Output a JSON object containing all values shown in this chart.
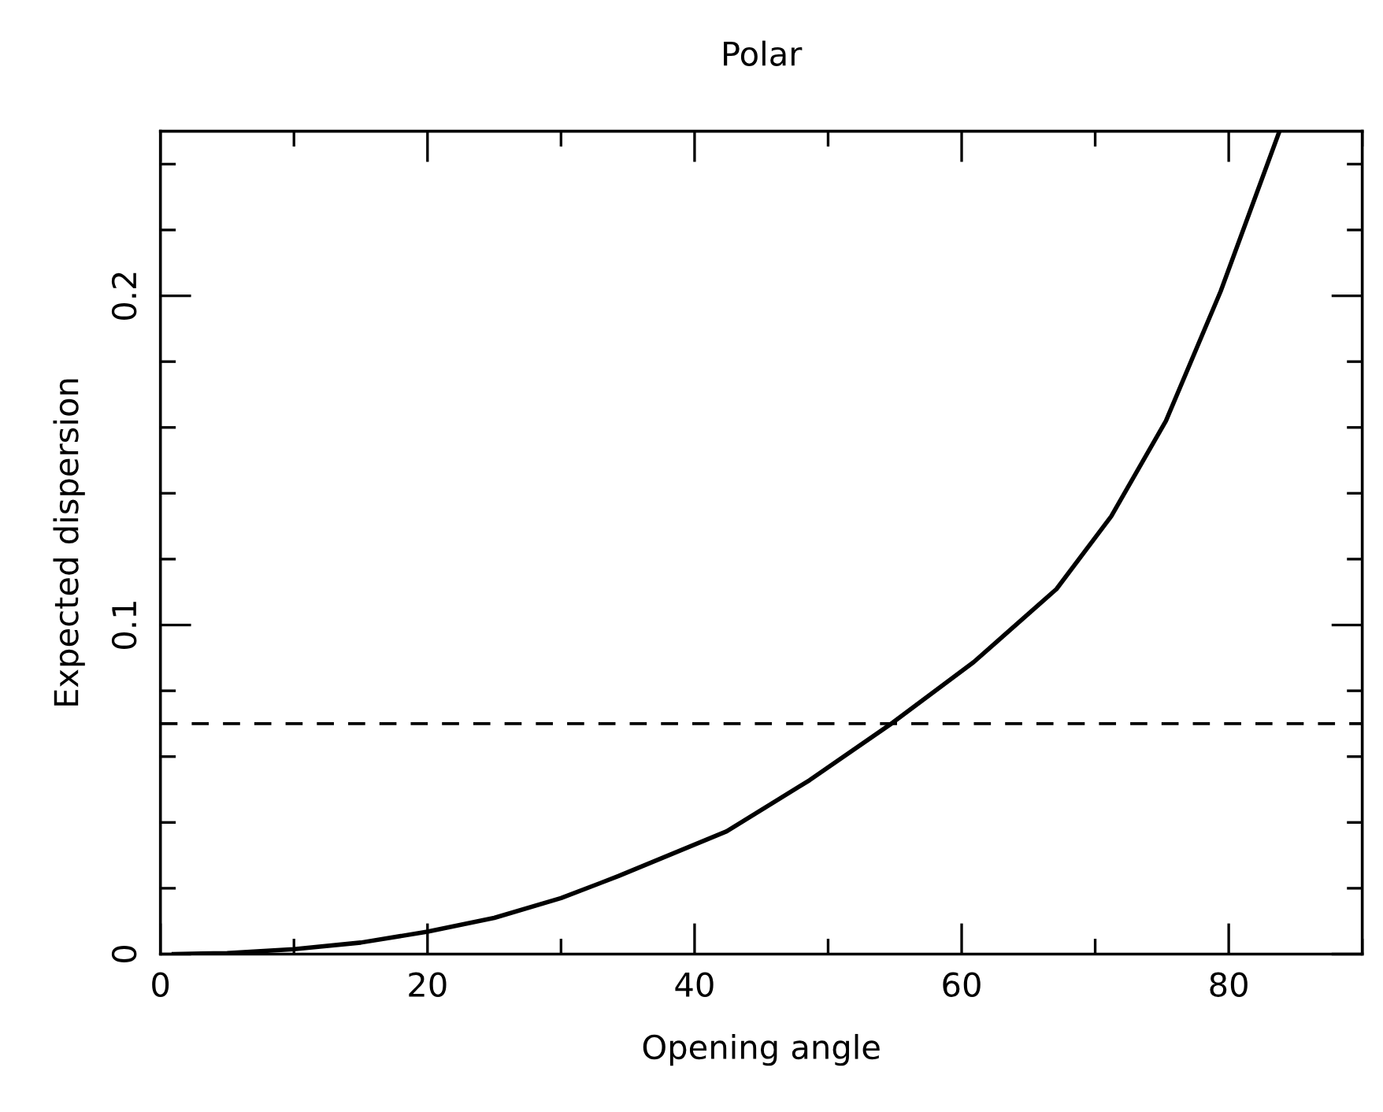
{
  "chart_data": {
    "type": "line",
    "title": "Polar",
    "xlabel": "Opening angle",
    "ylabel": "Expected dispersion",
    "xlim": [
      0,
      90
    ],
    "ylim": [
      0,
      0.25
    ],
    "xticks": [
      0,
      {
        "value": 10,
        "label": null
      },
      20,
      {
        "value": 30,
        "label": null
      },
      40,
      {
        "value": 50,
        "label": null
      },
      60,
      {
        "value": 70,
        "label": null
      },
      80,
      {
        "value": 90,
        "label": null
      }
    ],
    "yticks": [
      0,
      {
        "value": 0.02,
        "label": null
      },
      {
        "value": 0.04,
        "label": null
      },
      {
        "value": 0.06,
        "label": null
      },
      {
        "value": 0.08,
        "label": null
      },
      0.1,
      {
        "value": 0.12,
        "label": null
      },
      {
        "value": 0.14,
        "label": null
      },
      {
        "value": 0.16,
        "label": null
      },
      {
        "value": 0.18,
        "label": null
      },
      0.2,
      {
        "value": 0.22,
        "label": null
      },
      {
        "value": 0.24,
        "label": null
      }
    ],
    "x": [
      1,
      5,
      10,
      15,
      20,
      25,
      30,
      34.3,
      42.4,
      48.6,
      54.8,
      60.9,
      67.1,
      71.2,
      75.3,
      79.4,
      83.8
    ],
    "series": [
      {
        "color": "#000000",
        "values": [
          0,
          0.0003,
          0.0015,
          0.0035,
          0.0068,
          0.011,
          0.017,
          0.0237,
          0.0373,
          0.0528,
          0.0702,
          0.0887,
          0.1109,
          0.133,
          0.162,
          0.2014,
          0.25
        ]
      }
    ],
    "ref_lines": [
      {
        "axis": "y",
        "value": 0.07,
        "color": "#000000",
        "line_style": "dashed"
      }
    ],
    "grid": false,
    "legend": false,
    "marker": "none",
    "line_style": "solid"
  }
}
